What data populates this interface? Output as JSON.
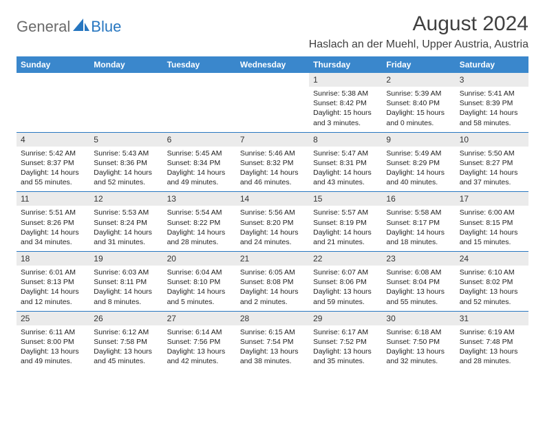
{
  "logo": {
    "text_general": "General",
    "text_blue": "Blue",
    "shape_color": "#2676c0"
  },
  "colors": {
    "header_bg": "#3a87cc",
    "header_text": "#ffffff",
    "daynum_bg": "#ebebeb",
    "rule": "#2676c0",
    "body_text": "#222222",
    "title_text": "#404040"
  },
  "title": "August 2024",
  "location": "Haslach an der Muehl, Upper Austria, Austria",
  "days_of_week": [
    "Sunday",
    "Monday",
    "Tuesday",
    "Wednesday",
    "Thursday",
    "Friday",
    "Saturday"
  ],
  "typography": {
    "title_fontsize": 30,
    "location_fontsize": 16,
    "dow_fontsize": 12,
    "daynum_fontsize": 12,
    "data_fontsize": 10.5
  },
  "weeks": [
    [
      null,
      null,
      null,
      null,
      {
        "n": "1",
        "sr": "5:38 AM",
        "ss": "8:42 PM",
        "dl": "15 hours and 3 minutes."
      },
      {
        "n": "2",
        "sr": "5:39 AM",
        "ss": "8:40 PM",
        "dl": "15 hours and 0 minutes."
      },
      {
        "n": "3",
        "sr": "5:41 AM",
        "ss": "8:39 PM",
        "dl": "14 hours and 58 minutes."
      }
    ],
    [
      {
        "n": "4",
        "sr": "5:42 AM",
        "ss": "8:37 PM",
        "dl": "14 hours and 55 minutes."
      },
      {
        "n": "5",
        "sr": "5:43 AM",
        "ss": "8:36 PM",
        "dl": "14 hours and 52 minutes."
      },
      {
        "n": "6",
        "sr": "5:45 AM",
        "ss": "8:34 PM",
        "dl": "14 hours and 49 minutes."
      },
      {
        "n": "7",
        "sr": "5:46 AM",
        "ss": "8:32 PM",
        "dl": "14 hours and 46 minutes."
      },
      {
        "n": "8",
        "sr": "5:47 AM",
        "ss": "8:31 PM",
        "dl": "14 hours and 43 minutes."
      },
      {
        "n": "9",
        "sr": "5:49 AM",
        "ss": "8:29 PM",
        "dl": "14 hours and 40 minutes."
      },
      {
        "n": "10",
        "sr": "5:50 AM",
        "ss": "8:27 PM",
        "dl": "14 hours and 37 minutes."
      }
    ],
    [
      {
        "n": "11",
        "sr": "5:51 AM",
        "ss": "8:26 PM",
        "dl": "14 hours and 34 minutes."
      },
      {
        "n": "12",
        "sr": "5:53 AM",
        "ss": "8:24 PM",
        "dl": "14 hours and 31 minutes."
      },
      {
        "n": "13",
        "sr": "5:54 AM",
        "ss": "8:22 PM",
        "dl": "14 hours and 28 minutes."
      },
      {
        "n": "14",
        "sr": "5:56 AM",
        "ss": "8:20 PM",
        "dl": "14 hours and 24 minutes."
      },
      {
        "n": "15",
        "sr": "5:57 AM",
        "ss": "8:19 PM",
        "dl": "14 hours and 21 minutes."
      },
      {
        "n": "16",
        "sr": "5:58 AM",
        "ss": "8:17 PM",
        "dl": "14 hours and 18 minutes."
      },
      {
        "n": "17",
        "sr": "6:00 AM",
        "ss": "8:15 PM",
        "dl": "14 hours and 15 minutes."
      }
    ],
    [
      {
        "n": "18",
        "sr": "6:01 AM",
        "ss": "8:13 PM",
        "dl": "14 hours and 12 minutes."
      },
      {
        "n": "19",
        "sr": "6:03 AM",
        "ss": "8:11 PM",
        "dl": "14 hours and 8 minutes."
      },
      {
        "n": "20",
        "sr": "6:04 AM",
        "ss": "8:10 PM",
        "dl": "14 hours and 5 minutes."
      },
      {
        "n": "21",
        "sr": "6:05 AM",
        "ss": "8:08 PM",
        "dl": "14 hours and 2 minutes."
      },
      {
        "n": "22",
        "sr": "6:07 AM",
        "ss": "8:06 PM",
        "dl": "13 hours and 59 minutes."
      },
      {
        "n": "23",
        "sr": "6:08 AM",
        "ss": "8:04 PM",
        "dl": "13 hours and 55 minutes."
      },
      {
        "n": "24",
        "sr": "6:10 AM",
        "ss": "8:02 PM",
        "dl": "13 hours and 52 minutes."
      }
    ],
    [
      {
        "n": "25",
        "sr": "6:11 AM",
        "ss": "8:00 PM",
        "dl": "13 hours and 49 minutes."
      },
      {
        "n": "26",
        "sr": "6:12 AM",
        "ss": "7:58 PM",
        "dl": "13 hours and 45 minutes."
      },
      {
        "n": "27",
        "sr": "6:14 AM",
        "ss": "7:56 PM",
        "dl": "13 hours and 42 minutes."
      },
      {
        "n": "28",
        "sr": "6:15 AM",
        "ss": "7:54 PM",
        "dl": "13 hours and 38 minutes."
      },
      {
        "n": "29",
        "sr": "6:17 AM",
        "ss": "7:52 PM",
        "dl": "13 hours and 35 minutes."
      },
      {
        "n": "30",
        "sr": "6:18 AM",
        "ss": "7:50 PM",
        "dl": "13 hours and 32 minutes."
      },
      {
        "n": "31",
        "sr": "6:19 AM",
        "ss": "7:48 PM",
        "dl": "13 hours and 28 minutes."
      }
    ]
  ],
  "labels": {
    "sunrise": "Sunrise:",
    "sunset": "Sunset:",
    "daylight": "Daylight:"
  }
}
